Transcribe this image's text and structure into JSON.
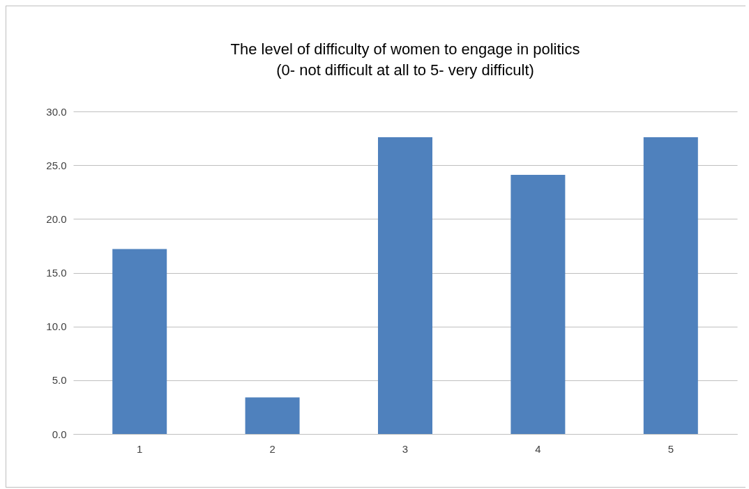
{
  "chart_data": {
    "type": "bar",
    "title": "The level of difficulty of women to engage in politics",
    "subtitle": "(0- not difficult at all to 5- very difficult)",
    "categories": [
      "1",
      "2",
      "3",
      "4",
      "5"
    ],
    "values": [
      17.2,
      3.4,
      27.6,
      24.1,
      27.6
    ],
    "color": "#4f81bd",
    "ylim": [
      0,
      30
    ],
    "yticks": [
      {
        "value": 0,
        "label": "0.0"
      },
      {
        "value": 5,
        "label": "5.0"
      },
      {
        "value": 10,
        "label": "10.0"
      },
      {
        "value": 15,
        "label": "15.0"
      },
      {
        "value": 20,
        "label": "20.0"
      },
      {
        "value": 25,
        "label": "25.0"
      },
      {
        "value": 30,
        "label": "30.0"
      }
    ],
    "grid": "y"
  }
}
